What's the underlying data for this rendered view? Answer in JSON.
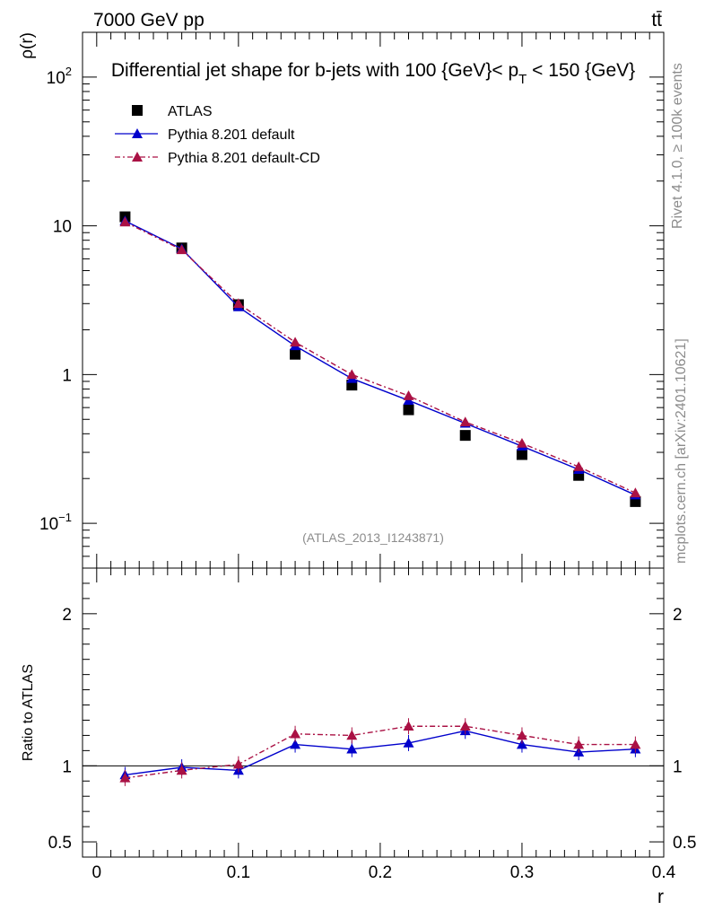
{
  "header": {
    "left": "7000 GeV pp",
    "right": "tt̄",
    "side_top": "Rivet 4.1.0, ≥ 100k events",
    "side_bottom": "mcplots.cern.ch [arXiv:2401.10621]"
  },
  "chart_data": {
    "type": "line",
    "title": "Differential jet shape for b-jets with 100 {GeV}< p_T < 150 {GeV}",
    "title_parts": {
      "pre": "Differential jet shape for b-jets with 100 {GeV}< p",
      "sub": "T",
      "post": " < 150 {GeV}"
    },
    "ylabel": "ρ(r)",
    "ratio_ylabel": "Ratio to ATLAS",
    "xlabel": "r",
    "analysis_tag": "(ATLAS_2013_I1243871)",
    "xlim": [
      -0.01,
      0.4
    ],
    "ylim_log": [
      0.05,
      200
    ],
    "ratio_ylim": [
      0.4,
      2.3
    ],
    "x": [
      0.02,
      0.06,
      0.1,
      0.14,
      0.18,
      0.22,
      0.26,
      0.3,
      0.34,
      0.38
    ],
    "series": [
      {
        "name": "ATLAS",
        "style": "data",
        "color": "#000000",
        "values": [
          11.5,
          7.1,
          2.95,
          1.37,
          0.85,
          0.58,
          0.39,
          0.29,
          0.21,
          0.14
        ],
        "ratio": [
          1.0,
          1.0,
          1.0,
          1.0,
          1.0,
          1.0,
          1.0,
          1.0,
          1.0,
          1.0
        ]
      },
      {
        "name": "Pythia 8.201 default",
        "style": "solid",
        "color": "#0000cc",
        "values": [
          10.8,
          7.0,
          2.85,
          1.56,
          0.94,
          0.67,
          0.47,
          0.33,
          0.23,
          0.155
        ],
        "ratio": [
          0.94,
          0.99,
          0.97,
          1.14,
          1.11,
          1.15,
          1.23,
          1.14,
          1.09,
          1.11
        ]
      },
      {
        "name": "Pythia 8.201 default-CD",
        "style": "dashdot",
        "color": "#aa1144",
        "values": [
          10.6,
          6.9,
          3.0,
          1.65,
          1.0,
          0.72,
          0.48,
          0.345,
          0.24,
          0.16
        ],
        "ratio": [
          0.92,
          0.97,
          1.01,
          1.21,
          1.2,
          1.26,
          1.26,
          1.2,
          1.14,
          1.14
        ]
      }
    ],
    "yticks_main": [
      {
        "v": 100,
        "base": "10",
        "exp": "2"
      },
      {
        "v": 10,
        "base": "10",
        "exp": ""
      },
      {
        "v": 1,
        "base": "1",
        "exp": ""
      },
      {
        "v": 0.1,
        "base": "10",
        "exp": "−1"
      }
    ],
    "yticks_ratio": [
      {
        "v": 2,
        "label": "2"
      },
      {
        "v": 1,
        "label": "1"
      },
      {
        "v": 0.5,
        "label": "0.5"
      }
    ],
    "xticks": [
      {
        "v": 0,
        "label": "0"
      },
      {
        "v": 0.1,
        "label": "0.1"
      },
      {
        "v": 0.2,
        "label": "0.2"
      },
      {
        "v": 0.3,
        "label": "0.3"
      },
      {
        "v": 0.4,
        "label": "0.4"
      }
    ]
  }
}
